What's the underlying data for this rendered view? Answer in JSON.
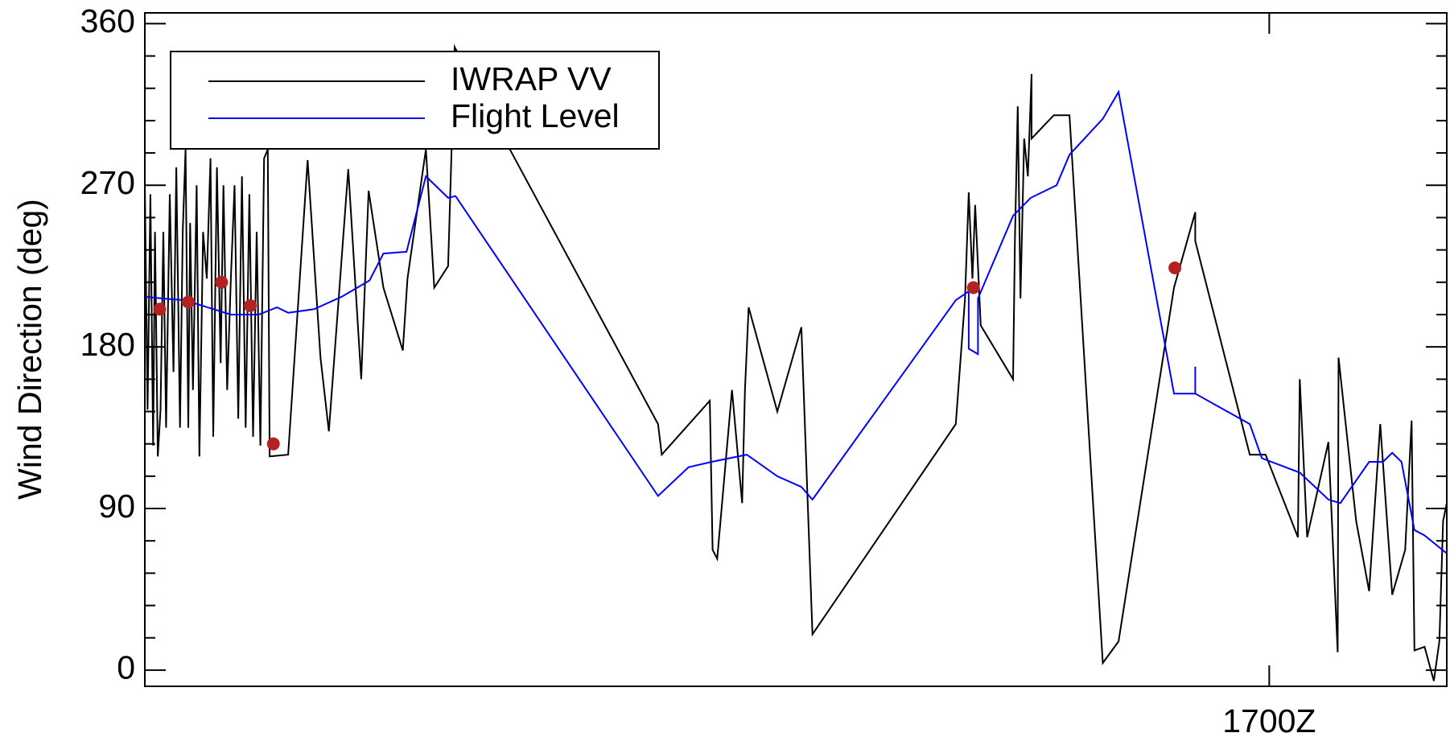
{
  "chart_data": {
    "type": "line",
    "ylabel": "Wind Direction (deg)",
    "xlim": [
      15.784,
      17.192
    ],
    "xticks": [
      {
        "value": 17.0,
        "label": "1700Z"
      }
    ],
    "ylim": [
      -9,
      366
    ],
    "yticks": [
      0,
      90,
      180,
      270,
      360
    ],
    "minor_yticks": [
      18,
      36,
      54,
      72,
      108,
      126,
      144,
      162,
      198,
      216,
      234,
      252,
      288,
      306,
      324,
      342
    ],
    "legend": "upper left",
    "series": [
      {
        "name": "IWRAP VV",
        "color": "#000000",
        "x": [
          15.784,
          15.787,
          15.79,
          15.793,
          15.795,
          15.798,
          15.801,
          15.804,
          15.807,
          15.811,
          15.815,
          15.818,
          15.822,
          15.825,
          15.828,
          15.831,
          15.833,
          15.836,
          15.84,
          15.843,
          15.847,
          15.851,
          15.855,
          15.858,
          15.862,
          15.866,
          15.869,
          15.873,
          15.877,
          15.881,
          15.885,
          15.889,
          15.893,
          15.897,
          15.901,
          15.905,
          15.909,
          15.913,
          15.917,
          15.919,
          15.939,
          15.96,
          15.974,
          15.983,
          16.004,
          16.018,
          16.026,
          16.042,
          16.063,
          16.068,
          16.088,
          16.097,
          16.112,
          16.119,
          16.339,
          16.343,
          16.395,
          16.398,
          16.403,
          16.419,
          16.43,
          16.433,
          16.437,
          16.468,
          16.494,
          16.506,
          16.661,
          16.671,
          16.675,
          16.679,
          16.682,
          16.688,
          16.723,
          16.725,
          16.728,
          16.731,
          16.735,
          16.739,
          16.743,
          16.743,
          16.767,
          16.784,
          16.82,
          16.837,
          16.897,
          16.92,
          16.92,
          16.979,
          16.996,
          17.031,
          17.033,
          17.041,
          17.064,
          17.074,
          17.075,
          17.094,
          17.108,
          17.12,
          17.133,
          17.147,
          17.154,
          17.157,
          17.168,
          17.178,
          17.184,
          17.188,
          17.192
        ],
        "values": [
          270,
          145,
          265,
          125,
          244,
          119,
          145,
          244,
          135,
          265,
          166,
          280,
          135,
          244,
          290,
          135,
          249,
          156,
          270,
          119,
          244,
          218,
          285,
          130,
          280,
          171,
          270,
          156,
          218,
          270,
          140,
          275,
          135,
          265,
          130,
          244,
          125,
          285,
          290,
          119,
          120,
          284,
          174,
          133,
          279,
          162,
          267,
          213,
          178,
          218,
          290,
          213,
          225,
          347,
          137,
          120,
          150,
          67,
          62,
          156,
          93,
          156,
          202,
          144,
          191,
          20,
          137,
          207,
          266,
          218,
          259,
          192,
          162,
          239,
          314,
          207,
          296,
          275,
          332,
          296,
          309,
          309,
          4,
          16,
          213,
          255,
          239,
          120,
          120,
          74,
          162,
          74,
          127,
          10,
          174,
          83,
          44,
          137,
          42,
          67,
          139,
          11,
          13,
          -6,
          16,
          83,
          93
        ]
      },
      {
        "name": "Flight Level",
        "color": "#0000ff",
        "x": [
          15.784,
          15.802,
          15.827,
          15.877,
          15.907,
          15.927,
          15.939,
          15.967,
          15.997,
          16.027,
          16.042,
          16.067,
          16.088,
          16.112,
          16.12,
          16.339,
          16.372,
          16.397,
          16.435,
          16.468,
          16.494,
          16.506,
          16.661,
          16.675,
          16.675,
          16.685,
          16.685,
          16.723,
          16.742,
          16.77,
          16.784,
          16.82,
          16.837,
          16.897,
          16.92,
          16.92,
          16.92,
          16.979,
          16.992,
          17.033,
          17.064,
          17.077,
          17.108,
          17.123,
          17.133,
          17.143,
          17.157,
          17.168,
          17.192
        ],
        "values": [
          208,
          207,
          206,
          198,
          198,
          202,
          199,
          201,
          208,
          217,
          232,
          233,
          275,
          263,
          264,
          97,
          113,
          116,
          120,
          108,
          102,
          95,
          206,
          211,
          179,
          176,
          207,
          253,
          263,
          270,
          287,
          307,
          322,
          154,
          154,
          169,
          154,
          137,
          118,
          110,
          95,
          93,
          116,
          116,
          121,
          116,
          78,
          75,
          65
        ]
      }
    ],
    "points": {
      "color": "#b22222",
      "x": [
        15.8,
        15.831,
        15.867,
        15.898,
        15.923,
        16.68,
        16.898
      ],
      "values": [
        201,
        205,
        216,
        203,
        126,
        213,
        224
      ]
    }
  }
}
